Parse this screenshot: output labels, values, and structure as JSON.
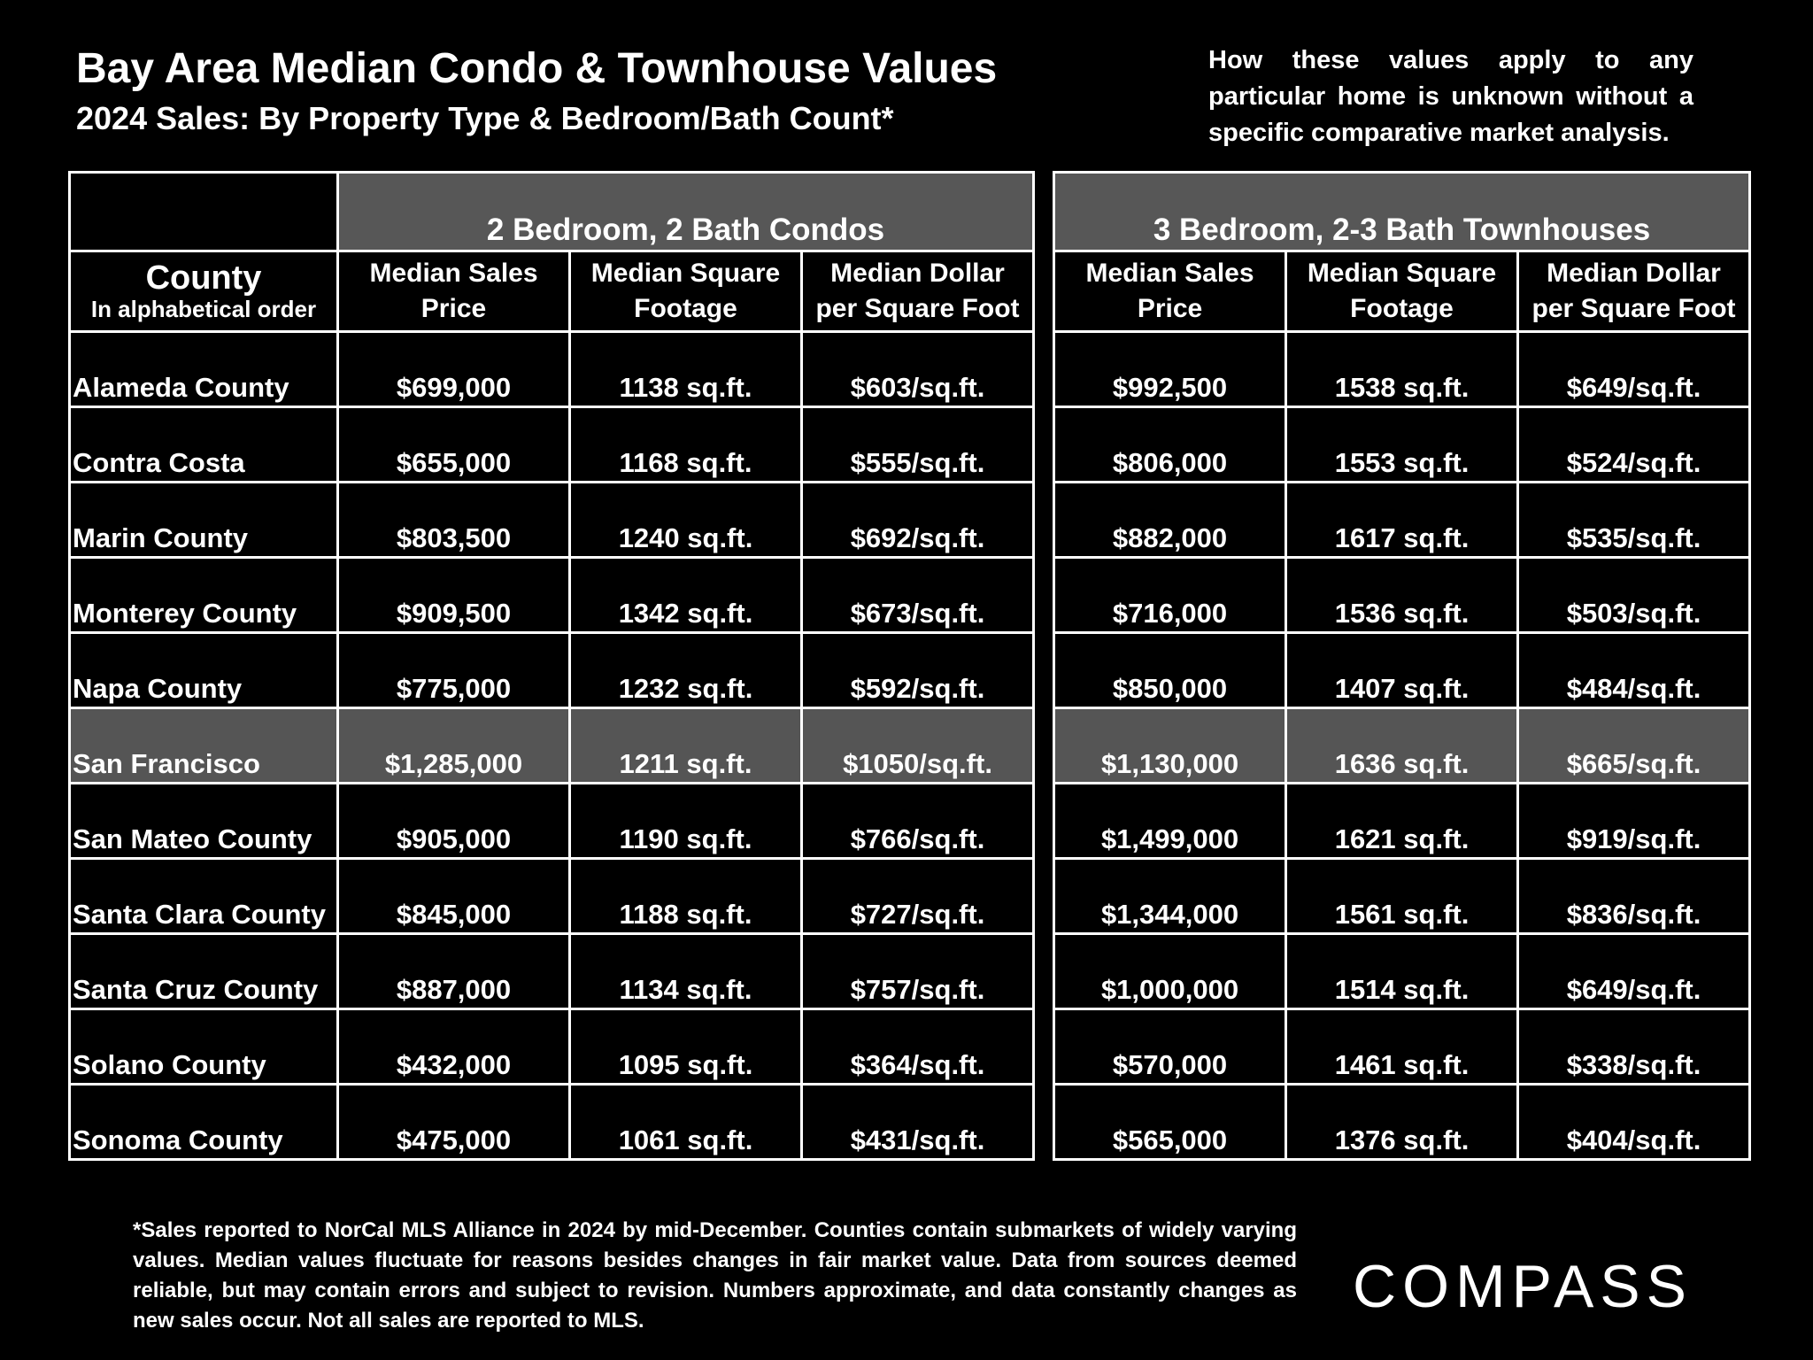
{
  "header": {
    "title": "Bay Area Median Condo & Townhouse Values",
    "subtitle": "2024 Sales:  By Property Type & Bedroom/Bath Count*",
    "disclaimer": "How these values apply to any particular home is unknown without a specific comparative market analysis."
  },
  "table": {
    "groups": [
      "2 Bedroom, 2 Bath Condos",
      "3 Bedroom, 2-3 Bath Townhouses"
    ],
    "county_header": "County",
    "county_subheader": "In alphabetical order",
    "columns": [
      {
        "line1": "Median Sales",
        "line2": "Price"
      },
      {
        "line1": "Median Square",
        "line2": "Footage"
      },
      {
        "line1": "Median Dollar",
        "line2": "per Square Foot"
      },
      {
        "line1": "Median Sales",
        "line2": "Price"
      },
      {
        "line1": "Median Square",
        "line2": "Footage"
      },
      {
        "line1": "Median Dollar",
        "line2": "per Square Foot"
      }
    ],
    "rows": [
      {
        "county": "Alameda County",
        "cells": [
          "$699,000",
          "1138 sq.ft.",
          "$603/sq.ft.",
          "$992,500",
          "1538 sq.ft.",
          "$649/sq.ft."
        ]
      },
      {
        "county": "Contra Costa",
        "cells": [
          "$655,000",
          "1168 sq.ft.",
          "$555/sq.ft.",
          "$806,000",
          "1553 sq.ft.",
          "$524/sq.ft."
        ]
      },
      {
        "county": "Marin County",
        "cells": [
          "$803,500",
          "1240 sq.ft.",
          "$692/sq.ft.",
          "$882,000",
          "1617 sq.ft.",
          "$535/sq.ft."
        ]
      },
      {
        "county": "Monterey County",
        "cells": [
          "$909,500",
          "1342 sq.ft.",
          "$673/sq.ft.",
          "$716,000",
          "1536 sq.ft.",
          "$503/sq.ft."
        ]
      },
      {
        "county": "Napa County",
        "cells": [
          "$775,000",
          "1232 sq.ft.",
          "$592/sq.ft.",
          "$850,000",
          "1407 sq.ft.",
          "$484/sq.ft."
        ]
      },
      {
        "county": "San Francisco",
        "cells": [
          "$1,285,000",
          "1211 sq.ft.",
          "$1050/sq.ft.",
          "$1,130,000",
          "1636 sq.ft.",
          "$665/sq.ft."
        ],
        "highlight": true
      },
      {
        "county": "San Mateo County",
        "cells": [
          "$905,000",
          "1190 sq.ft.",
          "$766/sq.ft.",
          "$1,499,000",
          "1621 sq.ft.",
          "$919/sq.ft."
        ]
      },
      {
        "county": "Santa Clara County",
        "cells": [
          "$845,000",
          "1188 sq.ft.",
          "$727/sq.ft.",
          "$1,344,000",
          "1561 sq.ft.",
          "$836/sq.ft."
        ]
      },
      {
        "county": "Santa Cruz County",
        "cells": [
          "$887,000",
          "1134 sq.ft.",
          "$757/sq.ft.",
          "$1,000,000",
          "1514 sq.ft.",
          "$649/sq.ft."
        ]
      },
      {
        "county": "Solano County",
        "cells": [
          "$432,000",
          "1095 sq.ft.",
          "$364/sq.ft.",
          "$570,000",
          "1461 sq.ft.",
          "$338/sq.ft."
        ]
      },
      {
        "county": "Sonoma County",
        "cells": [
          "$475,000",
          "1061 sq.ft.",
          "$431/sq.ft.",
          "$565,000",
          "1376 sq.ft.",
          "$404/sq.ft."
        ]
      }
    ]
  },
  "chart_data": {
    "type": "table",
    "title": "Bay Area Median Condo & Townhouse Values",
    "subtitle": "2024 Sales:  By Property Type & Bedroom/Bath Count*",
    "groups": [
      "2 Bedroom, 2 Bath Condos",
      "3 Bedroom, 2-3 Bath Townhouses"
    ],
    "categories": [
      "Alameda County",
      "Contra Costa",
      "Marin County",
      "Monterey County",
      "Napa County",
      "San Francisco",
      "San Mateo County",
      "Santa Clara County",
      "Santa Cruz County",
      "Solano County",
      "Sonoma County"
    ],
    "series": [
      {
        "name": "2 Bedroom, 2 Bath Condos - Median Sales Price",
        "values": [
          699000,
          655000,
          803500,
          909500,
          775000,
          1285000,
          905000,
          845000,
          887000,
          432000,
          475000
        ]
      },
      {
        "name": "2 Bedroom, 2 Bath Condos - Median Square Footage",
        "values": [
          1138,
          1168,
          1240,
          1342,
          1232,
          1211,
          1190,
          1188,
          1134,
          1095,
          1061
        ]
      },
      {
        "name": "2 Bedroom, 2 Bath Condos - Median Dollar per Square Foot",
        "values": [
          603,
          555,
          692,
          673,
          592,
          1050,
          766,
          727,
          757,
          364,
          431
        ]
      },
      {
        "name": "3 Bedroom, 2-3 Bath Townhouses - Median Sales Price",
        "values": [
          992500,
          806000,
          882000,
          716000,
          850000,
          1130000,
          1499000,
          1344000,
          1000000,
          570000,
          565000
        ]
      },
      {
        "name": "3 Bedroom, 2-3 Bath Townhouses - Median Square Footage",
        "values": [
          1538,
          1553,
          1617,
          1536,
          1407,
          1636,
          1621,
          1561,
          1514,
          1461,
          1376
        ]
      },
      {
        "name": "3 Bedroom, 2-3 Bath Townhouses - Median Dollar per Square Foot",
        "values": [
          649,
          524,
          535,
          503,
          484,
          665,
          919,
          836,
          649,
          338,
          404
        ]
      }
    ],
    "highlight_row": "San Francisco",
    "colors": {
      "background": "#000000",
      "text": "#ffffff",
      "header_fill": "#575757",
      "highlight_fill": "#555555",
      "border": "#ffffff"
    }
  },
  "footnote": "*Sales reported to NorCal MLS Alliance in 2024 by mid-December. Counties contain submarkets of widely varying values. Median values fluctuate for reasons besides changes in fair market value. Data from sources deemed reliable, but may contain errors and subject to revision.  Numbers approximate, and data constantly changes as new sales occur. Not all sales are reported to MLS.",
  "logo": {
    "text": "COMPASS"
  }
}
